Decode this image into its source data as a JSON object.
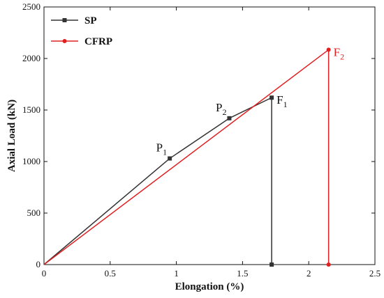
{
  "colors": {
    "SP": "#333333",
    "CFRP": "#e02020",
    "axis": "#111111"
  },
  "chart_data": {
    "type": "line",
    "xlabel": "Elongation (%)",
    "ylabel": "Axial Load (kN)",
    "xlim": [
      0,
      2.5
    ],
    "ylim": [
      0,
      2500
    ],
    "xticks": [
      0,
      0.5,
      1,
      1.5,
      2,
      2.5
    ],
    "xtick_labels": [
      "0",
      "0.5",
      "1",
      "1.5",
      "2",
      "2.5"
    ],
    "yticks": [
      0,
      500,
      1000,
      1500,
      2000,
      2500
    ],
    "ytick_labels": [
      "0",
      "500",
      "1000",
      "1500",
      "2000",
      "2500"
    ],
    "grid": false,
    "legend_position": "top-left",
    "series": [
      {
        "name": "SP",
        "color": "#333333",
        "marker": "square",
        "x": [
          0,
          0.95,
          1.4,
          1.72,
          1.72
        ],
        "y": [
          0,
          1030,
          1420,
          1620,
          0
        ]
      },
      {
        "name": "CFRP",
        "color": "#e02020",
        "marker": "circle",
        "x": [
          0,
          2.15,
          2.15
        ],
        "y": [
          0,
          2085,
          0
        ]
      }
    ],
    "annotations": [
      {
        "main": "P",
        "sub": "1",
        "x": 0.95,
        "y": 1030,
        "color": "#111111",
        "placement": "above-left"
      },
      {
        "main": "P",
        "sub": "2",
        "x": 1.4,
        "y": 1420,
        "color": "#111111",
        "placement": "above-left"
      },
      {
        "main": "F",
        "sub": "1",
        "x": 1.72,
        "y": 1620,
        "color": "#111111",
        "placement": "right"
      },
      {
        "main": "F",
        "sub": "2",
        "x": 2.15,
        "y": 2085,
        "color": "#e02020",
        "placement": "right"
      }
    ]
  }
}
